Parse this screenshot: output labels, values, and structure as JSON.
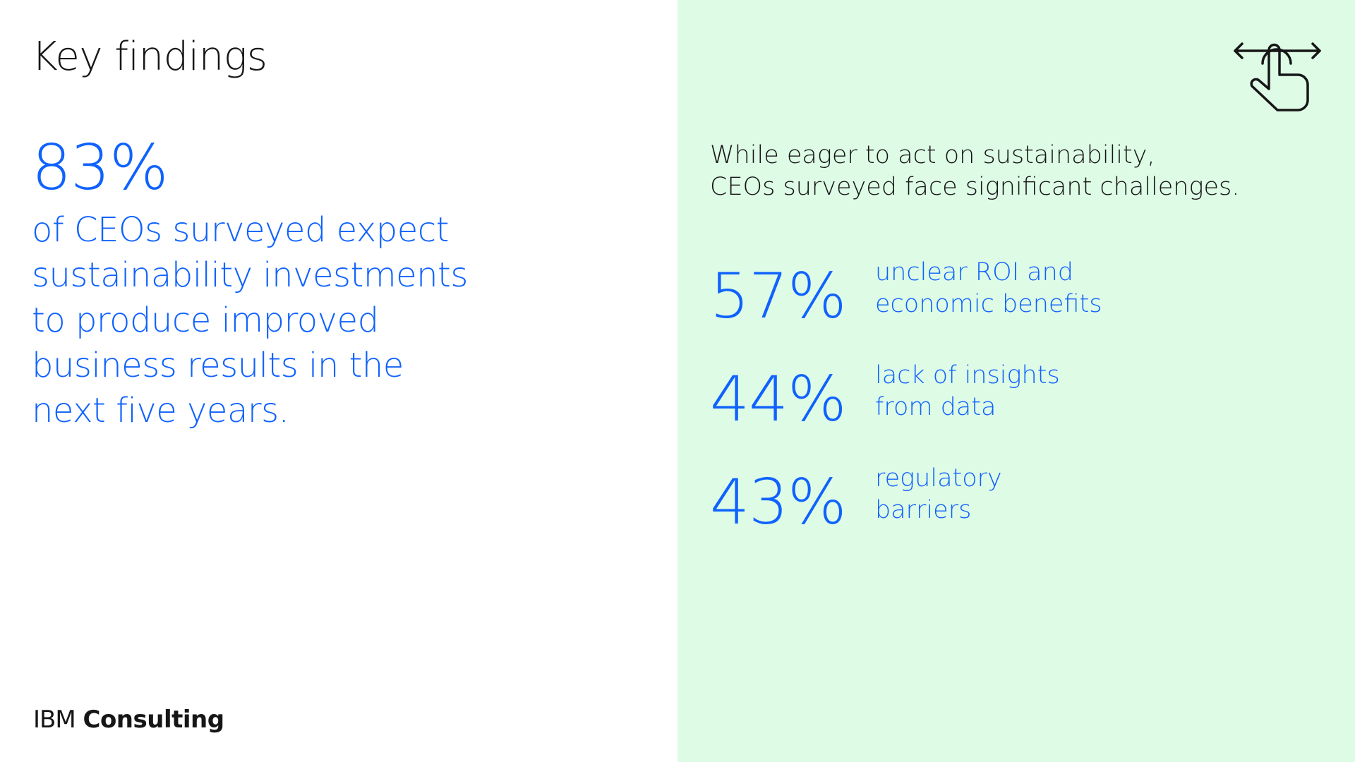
{
  "left": {
    "title": "Key findings",
    "hero_stat": "83%",
    "hero_description": "of CEOs surveyed expect\nsustainability investments\nto produce improved\nbusiness results in the\nnext five years.",
    "brand": {
      "part1": "IBM",
      "part2": "Consulting"
    }
  },
  "right": {
    "intro": "While eager to act on sustainability,\nCEOs surveyed face significant challenges.",
    "icon": "swipe-hand-icon",
    "stats": [
      {
        "value": "57%",
        "label": "unclear ROI and\neconomic benefits"
      },
      {
        "value": "44%",
        "label": "lack of insights\nfrom data"
      },
      {
        "value": "43%",
        "label": "regulatory\nbarriers"
      }
    ]
  },
  "colors": {
    "accent": "#0f62fe",
    "text": "#161616",
    "panel_bg": "#defbe6",
    "page_bg": "#ffffff"
  }
}
